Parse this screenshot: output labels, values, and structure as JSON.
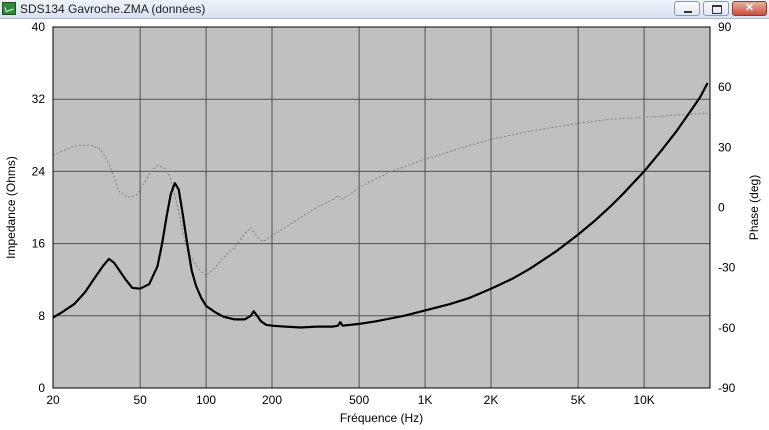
{
  "window": {
    "title": "SDS134 Gavroche.ZMA (données)",
    "close_glyph": "✕"
  },
  "icons": {
    "app": "chart-app-icon",
    "minimize": "minimize-icon",
    "maximize": "maximize-icon",
    "close": "close-icon"
  },
  "colors": {
    "plot_background": "#c0c0c0",
    "grid": "#505050",
    "impedance": "#000000",
    "phase": "#808080"
  },
  "chart_data": {
    "type": "line",
    "title": "",
    "xlabel": "Fréquence (Hz)",
    "ylabel": "Impedance (Ohms)",
    "y2label": "Phase (deg)",
    "xscale": "log",
    "xlim": [
      20,
      20000
    ],
    "ylim": [
      0,
      40
    ],
    "y2lim": [
      -90,
      90
    ],
    "xticks": [
      {
        "value": 20,
        "label": "20"
      },
      {
        "value": 50,
        "label": "50"
      },
      {
        "value": 100,
        "label": "100"
      },
      {
        "value": 200,
        "label": "200"
      },
      {
        "value": 500,
        "label": "500"
      },
      {
        "value": 1000,
        "label": "1K"
      },
      {
        "value": 2000,
        "label": "2K"
      },
      {
        "value": 5000,
        "label": "5K"
      },
      {
        "value": 10000,
        "label": "10K"
      }
    ],
    "yticks": [
      0,
      8,
      16,
      24,
      32,
      40
    ],
    "y2ticks": [
      -90,
      -60,
      -30,
      0,
      30,
      60,
      90
    ],
    "grid": true,
    "series": [
      {
        "axis": "left",
        "style": "solid",
        "x": [
          20,
          22,
          25,
          28,
          31,
          34,
          36,
          38,
          40,
          43,
          46,
          50,
          55,
          60,
          63,
          66,
          69,
          72,
          75,
          78,
          82,
          86,
          90,
          95,
          100,
          110,
          120,
          135,
          150,
          160,
          165,
          170,
          178,
          188,
          200,
          230,
          270,
          320,
          380,
          400,
          410,
          420,
          500,
          600,
          800,
          1000,
          1300,
          1600,
          2000,
          2500,
          3000,
          4000,
          5000,
          6000,
          7000,
          8000,
          10000,
          12000,
          14000,
          16000,
          18000,
          19500
        ],
        "y": [
          7.8,
          8.4,
          9.3,
          10.6,
          12.2,
          13.6,
          14.3,
          13.9,
          13.1,
          12.0,
          11.1,
          11.0,
          11.5,
          13.5,
          16.0,
          19.0,
          21.5,
          22.7,
          22.0,
          19.5,
          16.0,
          13.0,
          11.3,
          10.0,
          9.1,
          8.4,
          7.9,
          7.6,
          7.6,
          8.0,
          8.5,
          8.1,
          7.4,
          7.0,
          6.9,
          6.8,
          6.7,
          6.8,
          6.8,
          6.9,
          7.3,
          6.9,
          7.1,
          7.4,
          8.0,
          8.6,
          9.3,
          10.0,
          11.0,
          12.1,
          13.2,
          15.2,
          17.0,
          18.6,
          20.1,
          21.5,
          24.0,
          26.3,
          28.4,
          30.4,
          32.2,
          33.8
        ]
      },
      {
        "axis": "right",
        "style": "dotted",
        "x": [
          20,
          23,
          26,
          30,
          33,
          36,
          40,
          44,
          48,
          52,
          56,
          60,
          64,
          68,
          72,
          76,
          80,
          85,
          90,
          95,
          100,
          110,
          120,
          135,
          150,
          160,
          170,
          180,
          190,
          200,
          230,
          270,
          320,
          380,
          400,
          420,
          500,
          700,
          1000,
          1500,
          2000,
          3000,
          5000,
          7000,
          10000,
          14000,
          19500
        ],
        "y": [
          26,
          29,
          31,
          31,
          29,
          22,
          8,
          5,
          6,
          12,
          18,
          21,
          20,
          16,
          6,
          -5,
          -17,
          -24,
          -29,
          -32,
          -34,
          -30,
          -25,
          -20,
          -13,
          -10,
          -14,
          -17,
          -16,
          -14,
          -10,
          -5,
          0,
          4,
          6,
          4,
          10,
          18,
          24,
          30,
          34,
          38,
          42,
          44,
          45,
          46,
          47
        ]
      }
    ]
  }
}
